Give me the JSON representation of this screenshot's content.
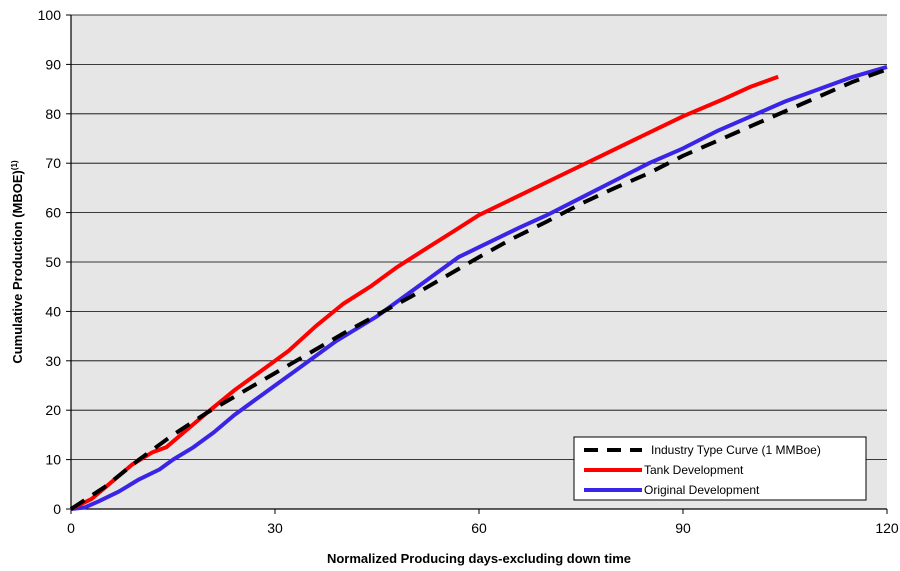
{
  "chart_data": {
    "type": "line",
    "title": "",
    "xlabel": "Normalized Producing days-excluding down time",
    "ylabel": "Cumulative Production (MBOE)",
    "ylabel_superscript": "(1)",
    "xlim": [
      0,
      120
    ],
    "ylim": [
      0,
      100
    ],
    "x_ticks": [
      0,
      30,
      60,
      90,
      120
    ],
    "y_ticks": [
      0,
      10,
      20,
      30,
      40,
      50,
      60,
      70,
      80,
      90,
      100
    ],
    "grid": "horizontal",
    "plot_background": "#e6e6e6",
    "legend_position": "bottom-right",
    "series": [
      {
        "name": "Industry Type Curve (1 MMBoe)",
        "color": "#000000",
        "dash": "dashed",
        "x": [
          0,
          5,
          10,
          15,
          20,
          25,
          30,
          35,
          40,
          45,
          50,
          55,
          60,
          65,
          70,
          75,
          80,
          85,
          90,
          95,
          100,
          105,
          110,
          115,
          120
        ],
        "y": [
          0,
          4.5,
          10,
          15,
          19.5,
          23.5,
          27.5,
          31.5,
          35.5,
          39.3,
          43,
          47,
          51,
          54.8,
          58.2,
          61.8,
          65,
          68,
          71.5,
          74.5,
          77.5,
          80.5,
          83.5,
          86.5,
          89
        ]
      },
      {
        "name": "Tank Development",
        "color": "#ff0000",
        "dash": "solid",
        "x": [
          0,
          3,
          6,
          9,
          12,
          14,
          17,
          20,
          24,
          28,
          32,
          36,
          40,
          44,
          48,
          52,
          56,
          60,
          66,
          72,
          78,
          84,
          90,
          96,
          100,
          104
        ],
        "y": [
          0,
          2,
          5.5,
          9,
          11.5,
          12.5,
          16,
          19.5,
          24,
          28,
          32,
          37,
          41.5,
          45,
          49,
          52.5,
          56,
          59.5,
          63.5,
          67.5,
          71.5,
          75.5,
          79.5,
          83,
          85.5,
          87.5
        ]
      },
      {
        "name": "Original Development",
        "color": "#3a24e6",
        "dash": "solid",
        "x": [
          0,
          2,
          4,
          7,
          10,
          13,
          15,
          18,
          21,
          24,
          27,
          30,
          33,
          36,
          39,
          42,
          45,
          48,
          51,
          54,
          57,
          60,
          63,
          66,
          70,
          75,
          80,
          85,
          90,
          95,
          100,
          105,
          110,
          115,
          120
        ],
        "y": [
          0,
          0.3,
          1.5,
          3.5,
          6,
          8,
          10,
          12.5,
          15.5,
          19,
          22,
          25,
          28,
          31,
          34,
          36.5,
          39,
          42,
          45,
          48,
          51,
          53,
          55,
          57,
          59.5,
          63,
          66.5,
          70,
          73,
          76.5,
          79.5,
          82.5,
          85,
          87.5,
          89.5
        ]
      }
    ]
  }
}
